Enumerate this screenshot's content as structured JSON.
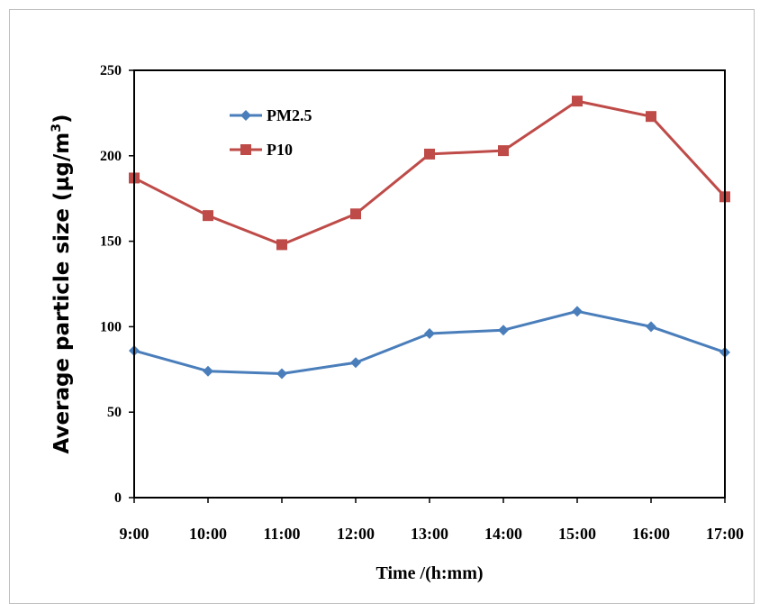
{
  "chart_data": {
    "type": "line",
    "xlabel": "Time /(h:mm)",
    "ylabel_main": "Average particle size (µg/m",
    "ylabel_sup": "3",
    "ylabel_close": ")",
    "ylim": [
      0,
      250
    ],
    "yticks": [
      "0",
      "50",
      "100",
      "150",
      "200",
      "250"
    ],
    "categories": [
      "9:00",
      "10:00",
      "11:00",
      "12:00",
      "13:00",
      "14:00",
      "15:00",
      "16:00",
      "17:00"
    ],
    "grid": false,
    "legend_position": "top-left",
    "series": [
      {
        "name": "PM2.5",
        "color": "#4a7ebb",
        "marker": "diamond",
        "values": [
          86,
          74,
          72.5,
          79,
          96,
          98,
          109,
          100,
          85
        ]
      },
      {
        "name": "P10",
        "color": "#be4b48",
        "marker": "square",
        "values": [
          187,
          165,
          148,
          166,
          201,
          203,
          232,
          223,
          176
        ]
      }
    ]
  }
}
